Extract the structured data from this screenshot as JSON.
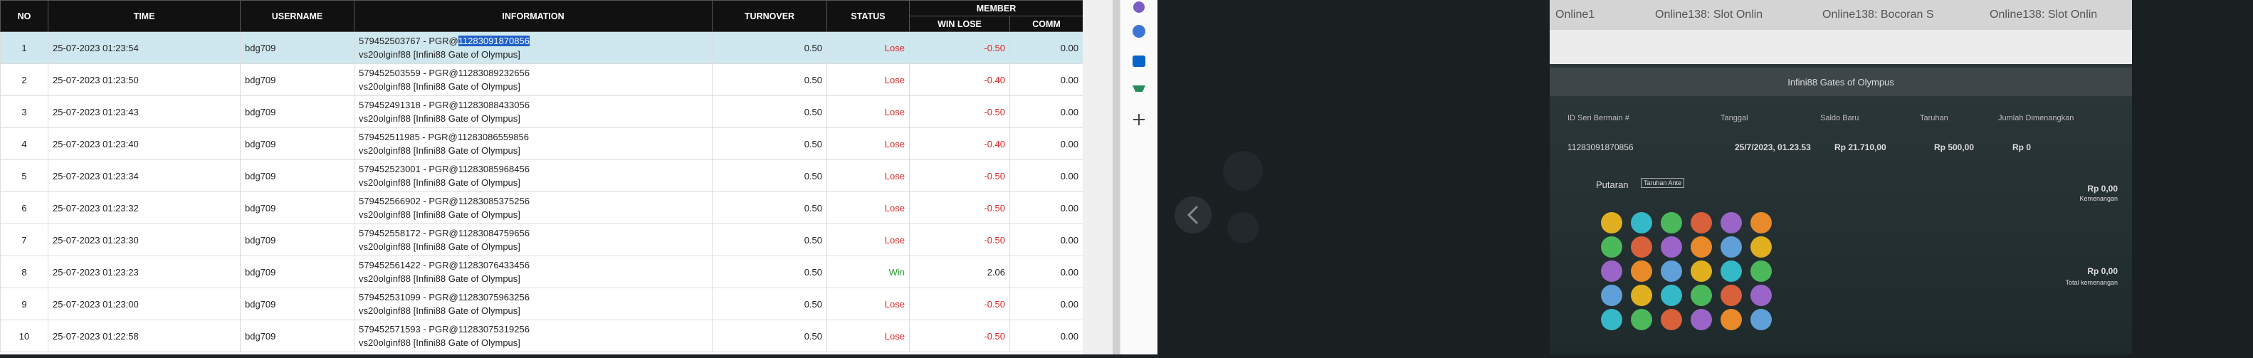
{
  "table": {
    "headers": {
      "no": "NO",
      "time": "TIME",
      "username": "USERNAME",
      "information": "INFORMATION",
      "turnover": "TURNOVER",
      "status": "STATUS",
      "member": "MEMBER",
      "win_lose": "WIN LOSE",
      "comm": "COMM"
    },
    "rows": [
      {
        "no": "1",
        "time": "25-07-2023 01:23:54",
        "username": "bdg709",
        "info_prefix": "579452503767 - PGR@",
        "info_ref": "11283091870856",
        "info_game": "vs20olginf88 [Infini88 Gate of Olympus]",
        "turnover": "0.50",
        "status": "Lose",
        "win_lose": "-0.50",
        "comm": "0.00"
      },
      {
        "no": "2",
        "time": "25-07-2023 01:23:50",
        "username": "bdg709",
        "info_prefix": "579452503559 - PGR@",
        "info_ref": "11283089232656",
        "info_game": "vs20olginf88 [Infini88 Gate of Olympus]",
        "turnover": "0.50",
        "status": "Lose",
        "win_lose": "-0.40",
        "comm": "0.00"
      },
      {
        "no": "3",
        "time": "25-07-2023 01:23:43",
        "username": "bdg709",
        "info_prefix": "579452491318 - PGR@",
        "info_ref": "11283088433056",
        "info_game": "vs20olginf88 [Infini88 Gate of Olympus]",
        "turnover": "0.50",
        "status": "Lose",
        "win_lose": "-0.50",
        "comm": "0.00"
      },
      {
        "no": "4",
        "time": "25-07-2023 01:23:40",
        "username": "bdg709",
        "info_prefix": "579452511985 - PGR@",
        "info_ref": "11283086559856",
        "info_game": "vs20olginf88 [Infini88 Gate of Olympus]",
        "turnover": "0.50",
        "status": "Lose",
        "win_lose": "-0.40",
        "comm": "0.00"
      },
      {
        "no": "5",
        "time": "25-07-2023 01:23:34",
        "username": "bdg709",
        "info_prefix": "579452523001 - PGR@",
        "info_ref": "11283085968456",
        "info_game": "vs20olginf88 [Infini88 Gate of Olympus]",
        "turnover": "0.50",
        "status": "Lose",
        "win_lose": "-0.50",
        "comm": "0.00"
      },
      {
        "no": "6",
        "time": "25-07-2023 01:23:32",
        "username": "bdg709",
        "info_prefix": "579452566902 - PGR@",
        "info_ref": "11283085375256",
        "info_game": "vs20olginf88 [Infini88 Gate of Olympus]",
        "turnover": "0.50",
        "status": "Lose",
        "win_lose": "-0.50",
        "comm": "0.00"
      },
      {
        "no": "7",
        "time": "25-07-2023 01:23:30",
        "username": "bdg709",
        "info_prefix": "579452558172 - PGR@",
        "info_ref": "11283084759656",
        "info_game": "vs20olginf88 [Infini88 Gate of Olympus]",
        "turnover": "0.50",
        "status": "Lose",
        "win_lose": "-0.50",
        "comm": "0.00"
      },
      {
        "no": "8",
        "time": "25-07-2023 01:23:23",
        "username": "bdg709",
        "info_prefix": "579452561422 - PGR@",
        "info_ref": "11283076433456",
        "info_game": "vs20olginf88 [Infini88 Gate of Olympus]",
        "turnover": "0.50",
        "status": "Win",
        "win_lose": "2.06",
        "comm": "0.00"
      },
      {
        "no": "9",
        "time": "25-07-2023 01:23:00",
        "username": "bdg709",
        "info_prefix": "579452531099 - PGR@",
        "info_ref": "11283075963256",
        "info_game": "vs20olginf88 [Infini88 Gate of Olympus]",
        "turnover": "0.50",
        "status": "Lose",
        "win_lose": "-0.50",
        "comm": "0.00"
      },
      {
        "no": "10",
        "time": "25-07-2023 01:22:58",
        "username": "bdg709",
        "info_prefix": "579452571593 - PGR@",
        "info_ref": "11283075319256",
        "info_game": "vs20olginf88 [Infini88 Gate of Olympus]",
        "turnover": "0.50",
        "status": "Lose",
        "win_lose": "-0.50",
        "comm": "0.00"
      }
    ]
  },
  "browser_tabs": [
    "Online1",
    "Online138: Slot Onlin",
    "Online138: Bocoran S",
    "Online138: Slot Onlin"
  ],
  "receipt": {
    "title": "Infini88 Gates of Olympus",
    "headers": [
      "ID Seri Bermain #",
      "Tanggal",
      "Saldo Baru",
      "Taruhan",
      "Jumlah Dimenangkan"
    ],
    "row": [
      "11283091870856",
      "25/7/2023, 01.23.53",
      "Rp 21.710,00",
      "Rp 500,00",
      "Rp 0"
    ],
    "spin": "Putaran",
    "ante": "Taruhan Ante",
    "win_amount": "Rp 0,00",
    "win_label": "Kemenangan",
    "total_amount": "Rp 0,00",
    "total_label": "Total kemenangan"
  }
}
